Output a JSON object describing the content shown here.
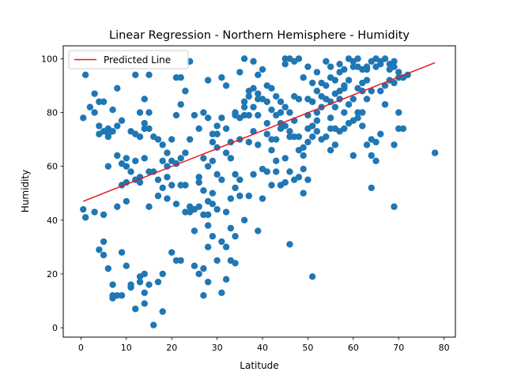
{
  "colors": {
    "points": "#1f77b4",
    "regression": "#e41a1c",
    "axes": "#000000",
    "background": "#ffffff"
  },
  "chart_data": {
    "type": "scatter",
    "title": "Linear Regression - Northern Hemisphere - Humidity",
    "xlabel": "Latitude",
    "ylabel": "Humidity",
    "xlim": [
      -3.9,
      82.5
    ],
    "ylim": [
      -3.5,
      104.8
    ],
    "x_ticks": [
      0,
      10,
      20,
      30,
      40,
      50,
      60,
      70,
      80
    ],
    "y_ticks": [
      0,
      20,
      40,
      60,
      80,
      100
    ],
    "x_tick_labels": [
      "0",
      "10",
      "20",
      "30",
      "40",
      "50",
      "60",
      "70",
      "80"
    ],
    "y_tick_labels": [
      "0",
      "20",
      "40",
      "60",
      "80",
      "100"
    ],
    "legend": {
      "position": "top-left",
      "entries": [
        "Predicted Line"
      ]
    },
    "regression_line": {
      "label": "Predicted Line",
      "x": [
        0.5,
        78
      ],
      "y": [
        47,
        98.5
      ]
    },
    "points": [
      [
        1,
        94
      ],
      [
        3,
        87
      ],
      [
        4,
        84
      ],
      [
        5,
        84
      ],
      [
        2,
        82
      ],
      [
        3,
        80
      ],
      [
        4,
        75
      ],
      [
        5,
        73
      ],
      [
        6,
        72
      ],
      [
        6,
        71
      ],
      [
        7,
        81
      ],
      [
        8,
        89
      ],
      [
        9,
        77
      ],
      [
        12,
        94
      ],
      [
        15,
        94
      ],
      [
        14,
        85
      ],
      [
        13,
        80
      ],
      [
        15,
        80
      ],
      [
        14,
        76
      ],
      [
        15,
        74
      ],
      [
        16,
        71
      ],
      [
        17,
        70
      ],
      [
        18,
        68
      ],
      [
        19,
        65
      ],
      [
        20,
        70
      ],
      [
        21,
        93
      ],
      [
        22,
        93
      ],
      [
        23,
        88
      ],
      [
        24,
        99
      ],
      [
        22,
        83
      ],
      [
        21,
        79
      ],
      [
        27,
        80
      ],
      [
        28,
        78
      ],
      [
        28,
        92
      ],
      [
        31,
        78
      ],
      [
        30,
        75
      ],
      [
        29,
        72
      ],
      [
        31,
        93
      ],
      [
        32,
        90
      ],
      [
        35,
        95
      ],
      [
        36,
        100
      ],
      [
        38,
        99
      ],
      [
        37,
        88
      ],
      [
        39,
        85
      ],
      [
        38,
        82
      ],
      [
        36,
        82
      ],
      [
        34,
        79
      ],
      [
        32,
        74
      ],
      [
        30,
        72
      ],
      [
        33,
        63
      ],
      [
        29,
        62
      ],
      [
        0.5,
        78
      ],
      [
        4,
        72
      ],
      [
        6,
        74
      ],
      [
        7,
        73
      ],
      [
        8,
        75
      ],
      [
        8,
        64
      ],
      [
        9,
        61
      ],
      [
        10,
        60
      ],
      [
        11,
        73
      ],
      [
        12,
        72
      ],
      [
        13,
        71
      ],
      [
        14,
        74
      ],
      [
        11,
        58
      ],
      [
        10,
        63
      ],
      [
        12,
        62
      ],
      [
        14,
        63
      ],
      [
        13,
        56
      ],
      [
        15,
        58
      ],
      [
        16,
        58
      ],
      [
        17,
        55
      ],
      [
        18,
        62
      ],
      [
        19,
        60
      ],
      [
        20,
        62
      ],
      [
        21,
        61
      ],
      [
        22,
        53
      ],
      [
        17,
        49
      ],
      [
        18,
        52
      ],
      [
        15,
        45
      ],
      [
        13,
        54
      ],
      [
        12,
        55
      ],
      [
        10,
        54
      ],
      [
        9,
        53
      ],
      [
        6,
        60
      ],
      [
        8,
        45
      ],
      [
        5,
        42
      ],
      [
        10,
        47
      ],
      [
        0.5,
        44
      ],
      [
        1,
        41
      ],
      [
        3,
        43
      ],
      [
        4,
        29
      ],
      [
        5,
        27
      ],
      [
        5,
        32
      ],
      [
        6,
        22
      ],
      [
        7,
        16
      ],
      [
        7,
        12
      ],
      [
        7,
        11
      ],
      [
        8,
        12
      ],
      [
        9,
        12
      ],
      [
        9,
        28
      ],
      [
        10,
        23
      ],
      [
        11,
        16
      ],
      [
        11,
        15
      ],
      [
        12,
        7
      ],
      [
        13,
        17
      ],
      [
        13,
        19
      ],
      [
        14,
        20
      ],
      [
        14,
        13
      ],
      [
        14,
        9
      ],
      [
        15,
        16
      ],
      [
        16,
        1
      ],
      [
        17,
        17
      ],
      [
        18,
        20
      ],
      [
        18,
        6
      ],
      [
        20,
        28
      ],
      [
        21,
        25
      ],
      [
        22,
        25
      ],
      [
        21,
        46
      ],
      [
        23,
        43
      ],
      [
        24,
        45
      ],
      [
        25,
        44
      ],
      [
        26,
        45
      ],
      [
        25,
        36
      ],
      [
        25,
        23
      ],
      [
        26,
        20
      ],
      [
        27,
        22
      ],
      [
        27,
        12
      ],
      [
        28,
        17
      ],
      [
        28,
        30
      ],
      [
        28,
        42
      ],
      [
        29,
        46
      ],
      [
        30,
        44
      ],
      [
        29,
        50
      ],
      [
        30,
        57
      ],
      [
        31,
        55
      ],
      [
        30,
        67
      ],
      [
        32,
        65
      ],
      [
        33,
        69
      ],
      [
        34,
        80
      ],
      [
        35,
        78
      ],
      [
        36,
        79
      ],
      [
        35,
        70
      ],
      [
        37,
        69
      ],
      [
        38,
        73
      ],
      [
        39,
        68
      ],
      [
        38,
        57
      ],
      [
        40,
        59
      ],
      [
        41,
        58
      ],
      [
        40,
        48
      ],
      [
        42,
        53
      ],
      [
        43,
        62
      ],
      [
        42,
        66
      ],
      [
        43,
        70
      ],
      [
        44,
        76
      ],
      [
        44,
        80
      ],
      [
        45,
        82
      ],
      [
        46,
        80
      ],
      [
        47,
        86
      ],
      [
        48,
        85
      ],
      [
        47,
        77
      ],
      [
        46,
        73
      ],
      [
        47,
        55
      ],
      [
        49,
        59
      ],
      [
        49,
        64
      ],
      [
        50,
        79
      ],
      [
        51,
        84
      ],
      [
        52,
        88
      ],
      [
        53,
        91
      ],
      [
        54,
        85
      ],
      [
        55,
        93
      ],
      [
        56,
        87
      ],
      [
        57,
        95
      ],
      [
        58,
        90
      ],
      [
        59,
        100
      ],
      [
        60,
        97
      ],
      [
        61,
        97
      ],
      [
        62,
        96
      ],
      [
        63,
        96
      ],
      [
        64,
        99
      ],
      [
        65,
        97
      ],
      [
        66,
        99
      ],
      [
        67,
        100
      ],
      [
        68,
        98
      ],
      [
        69,
        99
      ],
      [
        70,
        95
      ],
      [
        71,
        93
      ],
      [
        72,
        94
      ],
      [
        64,
        88
      ],
      [
        63,
        85
      ],
      [
        62,
        80
      ],
      [
        61,
        78
      ],
      [
        60,
        77
      ],
      [
        59,
        76
      ],
      [
        58,
        74
      ],
      [
        57,
        73
      ],
      [
        56,
        68
      ],
      [
        55,
        66
      ],
      [
        54,
        71
      ],
      [
        53,
        70
      ],
      [
        52,
        73
      ],
      [
        51,
        71
      ],
      [
        50,
        69
      ],
      [
        49,
        67
      ],
      [
        48,
        66
      ],
      [
        47,
        71
      ],
      [
        46,
        71
      ],
      [
        44,
        84
      ],
      [
        43,
        86
      ],
      [
        42,
        89
      ],
      [
        41,
        90
      ],
      [
        40,
        96
      ],
      [
        39,
        94
      ],
      [
        45,
        98
      ],
      [
        46,
        100
      ],
      [
        48,
        100
      ],
      [
        50,
        97
      ],
      [
        52,
        95
      ],
      [
        54,
        99
      ],
      [
        55,
        97
      ],
      [
        57,
        98
      ],
      [
        58,
        96
      ],
      [
        60,
        99
      ],
      [
        61,
        100
      ],
      [
        63,
        97
      ],
      [
        65,
        100
      ],
      [
        66,
        98
      ],
      [
        68,
        96
      ],
      [
        69,
        97
      ],
      [
        66,
        72
      ],
      [
        65,
        69
      ],
      [
        64,
        70
      ],
      [
        63,
        68
      ],
      [
        62,
        75
      ],
      [
        65,
        62
      ],
      [
        64,
        64
      ],
      [
        67,
        83
      ],
      [
        69,
        68
      ],
      [
        70,
        80
      ],
      [
        71,
        74
      ],
      [
        70,
        74
      ],
      [
        69,
        45
      ],
      [
        64,
        52
      ],
      [
        78,
        65
      ],
      [
        51,
        19
      ],
      [
        46,
        31
      ],
      [
        36,
        40
      ],
      [
        39,
        36
      ],
      [
        37,
        49
      ],
      [
        35,
        49
      ],
      [
        34,
        52
      ],
      [
        35,
        55
      ],
      [
        34,
        57
      ],
      [
        33,
        48
      ],
      [
        32,
        43
      ],
      [
        33,
        37
      ],
      [
        34,
        34
      ],
      [
        34,
        24
      ],
      [
        33,
        25
      ],
      [
        32,
        30
      ],
      [
        31,
        32
      ],
      [
        32,
        18
      ],
      [
        31,
        13
      ],
      [
        30,
        25
      ],
      [
        29,
        34
      ],
      [
        28,
        38
      ],
      [
        28,
        47
      ],
      [
        27,
        51
      ],
      [
        26,
        56
      ],
      [
        27,
        63
      ],
      [
        28,
        60
      ],
      [
        29,
        69
      ],
      [
        26,
        74
      ],
      [
        23,
        65
      ],
      [
        22,
        63
      ],
      [
        24,
        70
      ],
      [
        25,
        79
      ],
      [
        26,
        54
      ],
      [
        27,
        42
      ],
      [
        24,
        43
      ],
      [
        23,
        53
      ],
      [
        20,
        53
      ],
      [
        19,
        48
      ],
      [
        19,
        56
      ],
      [
        50,
        55
      ],
      [
        49,
        50
      ],
      [
        48,
        56
      ],
      [
        50,
        85
      ],
      [
        52,
        80
      ],
      [
        53,
        86
      ],
      [
        54,
        90
      ],
      [
        56,
        92
      ],
      [
        57,
        88
      ],
      [
        55,
        84
      ],
      [
        53,
        82
      ],
      [
        52,
        77
      ],
      [
        51,
        75
      ],
      [
        50,
        74
      ],
      [
        48,
        71
      ],
      [
        45,
        75
      ],
      [
        44,
        74
      ],
      [
        43,
        79
      ],
      [
        42,
        81
      ],
      [
        41,
        84
      ],
      [
        40,
        85
      ],
      [
        39,
        87
      ],
      [
        38,
        89
      ],
      [
        37,
        86
      ],
      [
        36,
        84
      ],
      [
        37,
        79
      ],
      [
        39,
        79
      ],
      [
        41,
        76
      ],
      [
        41,
        72
      ],
      [
        42,
        70
      ],
      [
        43,
        58
      ],
      [
        44,
        53
      ],
      [
        45,
        54
      ],
      [
        46,
        58
      ],
      [
        45,
        63
      ],
      [
        58,
        80
      ],
      [
        59,
        83
      ],
      [
        60,
        85
      ],
      [
        61,
        89
      ],
      [
        62,
        91
      ],
      [
        63,
        92
      ],
      [
        59,
        92
      ],
      [
        58,
        89
      ],
      [
        57,
        85
      ],
      [
        56,
        82
      ],
      [
        55,
        78
      ],
      [
        56,
        74
      ],
      [
        55,
        74
      ],
      [
        60,
        64
      ],
      [
        61,
        80
      ],
      [
        62,
        88
      ],
      [
        66,
        88
      ],
      [
        67,
        90
      ],
      [
        68,
        92
      ],
      [
        70,
        93
      ],
      [
        69,
        91
      ],
      [
        45,
        100
      ],
      [
        47,
        99
      ],
      [
        49,
        93
      ],
      [
        51,
        91
      ]
    ]
  }
}
